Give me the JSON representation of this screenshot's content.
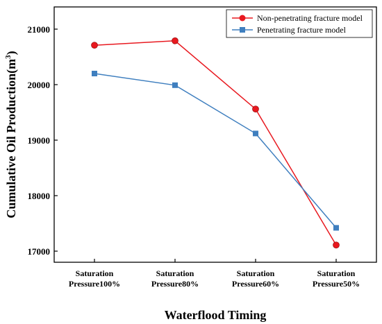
{
  "chart_data": {
    "type": "line",
    "categories": [
      [
        "Saturation",
        "Pressure100%"
      ],
      [
        "Saturation",
        "Pressure80%"
      ],
      [
        "Saturation",
        "Pressure60%"
      ],
      [
        "Saturation",
        "Pressure50%"
      ]
    ],
    "series": [
      {
        "name": "Non-penetrating fracture model",
        "values": [
          20710,
          20790,
          19560,
          17110
        ],
        "color": "#e8181f",
        "marker": "circle"
      },
      {
        "name": "Penetrating fracture model",
        "values": [
          20200,
          19990,
          19120,
          17420
        ],
        "color": "#3f7fbf",
        "marker": "square"
      }
    ],
    "xlabel": "Waterflood Timing",
    "ylabel": "Cumulative Oil Production(m",
    "ylabel_superscript": "3",
    "ylabel_close": ")",
    "ylim": [
      16800,
      21400
    ],
    "yticks": [
      17000,
      18000,
      19000,
      20000,
      21000
    ],
    "legend_position": "top-right",
    "grid": false
  }
}
